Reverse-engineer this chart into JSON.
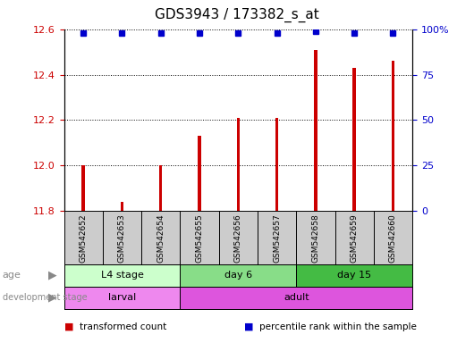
{
  "title": "GDS3943 / 173382_s_at",
  "samples": [
    "GSM542652",
    "GSM542653",
    "GSM542654",
    "GSM542655",
    "GSM542656",
    "GSM542657",
    "GSM542658",
    "GSM542659",
    "GSM542660"
  ],
  "bar_values": [
    12.0,
    11.84,
    12.0,
    12.13,
    12.21,
    12.21,
    12.51,
    12.43,
    12.46
  ],
  "percentile_values": [
    98,
    98,
    98,
    98,
    98,
    98,
    99,
    98,
    98
  ],
  "ymin": 11.8,
  "ymax": 12.6,
  "y2min": 0,
  "y2max": 100,
  "yticks": [
    11.8,
    12.0,
    12.2,
    12.4,
    12.6
  ],
  "y2ticks": [
    0,
    25,
    50,
    75,
    100
  ],
  "y2ticklabels": [
    "0",
    "25",
    "50",
    "75",
    "100%"
  ],
  "bar_color": "#cc0000",
  "dot_color": "#0000cc",
  "bar_width": 0.08,
  "dot_size": 5,
  "age_groups": [
    {
      "label": "L4 stage",
      "start": 0,
      "end": 3,
      "color": "#ccffcc"
    },
    {
      "label": "day 6",
      "start": 3,
      "end": 6,
      "color": "#88dd88"
    },
    {
      "label": "day 15",
      "start": 6,
      "end": 9,
      "color": "#44bb44"
    }
  ],
  "dev_groups": [
    {
      "label": "larval",
      "start": 0,
      "end": 3,
      "color": "#ee88ee"
    },
    {
      "label": "adult",
      "start": 3,
      "end": 9,
      "color": "#dd55dd"
    }
  ],
  "legend_items": [
    {
      "color": "#cc0000",
      "label": "transformed count"
    },
    {
      "color": "#0000cc",
      "label": "percentile rank within the sample"
    }
  ],
  "title_fontsize": 11,
  "tick_fontsize": 8,
  "axis_label_color_left": "#cc0000",
  "axis_label_color_right": "#0000cc",
  "sample_band_color": "#cccccc",
  "label_color": "#888888",
  "background_color": "#ffffff"
}
